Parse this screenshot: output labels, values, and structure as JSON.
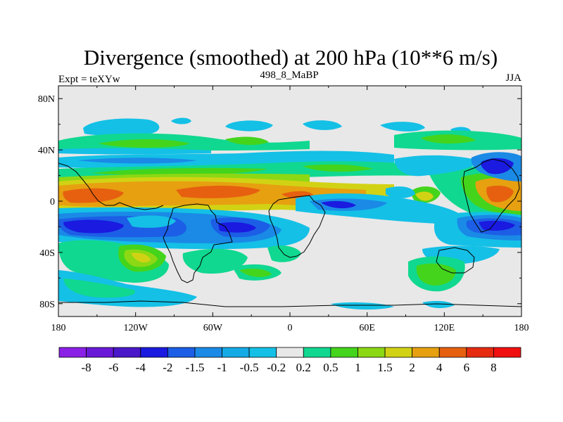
{
  "chart_data": {
    "type": "heatmap",
    "title": "Divergence (smoothed) at 200 hPa (10**6 m/s)",
    "subtitle_left": "Expt = teXYw",
    "subtitle_center": "498_8_MaBP",
    "subtitle_right": "JJA",
    "x_tick_labels": [
      "180",
      "120W",
      "60W",
      "0",
      "60E",
      "120E",
      "180"
    ],
    "x_ticks": [
      -180,
      -120,
      -60,
      0,
      60,
      120,
      180
    ],
    "y_tick_labels": [
      "80N",
      "40N",
      "0",
      "40S",
      "80S"
    ],
    "y_ticks": [
      80,
      40,
      0,
      -40,
      -80
    ],
    "xlim": [
      -180,
      180
    ],
    "ylim": [
      -90,
      90
    ],
    "grid": false,
    "colorbar": {
      "placement": "bottom",
      "levels": [
        "-8",
        "-6",
        "-4",
        "-2",
        "-1.5",
        "-1",
        "-0.5",
        "-0.2",
        "0.2",
        "0.5",
        "1",
        "1.5",
        "2",
        "4",
        "6",
        "8"
      ],
      "colors": [
        "#8a20e6",
        "#6a18d8",
        "#4a18c8",
        "#1a1ae0",
        "#1c5ee6",
        "#1a8ae6",
        "#14aae6",
        "#14c0e6",
        "#e8e8e8",
        "#10d890",
        "#44d41c",
        "#8cd814",
        "#d2d214",
        "#e6a010",
        "#e66010",
        "#e62a10",
        "#f01010"
      ]
    }
  }
}
